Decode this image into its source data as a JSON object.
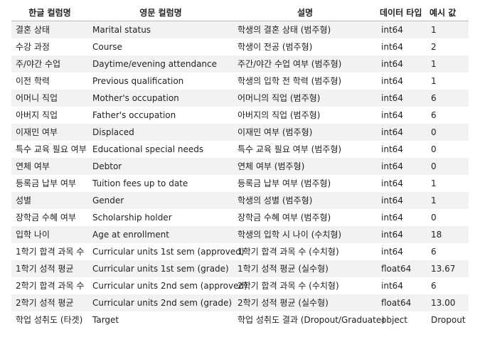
{
  "table": {
    "headers": [
      "한글 컬럼명",
      "영문 컬럼명",
      "설명",
      "데이터 타입",
      "예시 값"
    ],
    "rows": [
      [
        "결혼 상태",
        "Marital status",
        "학생의 결혼 상태 (범주형)",
        "int64",
        "1"
      ],
      [
        "수강 과정",
        "Course",
        "학생이 전공 (범주형)",
        "int64",
        "2"
      ],
      [
        "주/야간 수업",
        "Daytime/evening attendance",
        "주간/야간 수업 여부 (범주형)",
        "int64",
        "1"
      ],
      [
        "이전 학력",
        "Previous qualification",
        "학생의 입학 전 학력 (범주형)",
        "int64",
        "1"
      ],
      [
        "어머니 직업",
        "Mother's occupation",
        "어머니의 직업 (범주형)",
        "int64",
        "6"
      ],
      [
        "아버지 직업",
        "Father's occupation",
        "아버지의 직업 (범주형)",
        "int64",
        "6"
      ],
      [
        "이재민 여부",
        "Displaced",
        "이재민 여부 (범주형)",
        "int64",
        "0"
      ],
      [
        "특수 교육 필요 여부",
        "Educational special needs",
        "특수 교육 필요 여부 (범주형)",
        "int64",
        "0"
      ],
      [
        "연체 여부",
        "Debtor",
        "연체 여부 (범주형)",
        "int64",
        "0"
      ],
      [
        "등록금 납부 여부",
        "Tuition fees up to date",
        "등록금 납부 여부 (범주형)",
        "int64",
        "1"
      ],
      [
        "성별",
        "Gender",
        "학생의 성별 (범주형)",
        "int64",
        "1"
      ],
      [
        "장학금 수혜 여부",
        "Scholarship holder",
        "장학금 수혜 여부 (범주형)",
        "int64",
        "0"
      ],
      [
        "입학 나이",
        "Age at enrollment",
        "학생의 입학 시 나이 (수치형)",
        "int64",
        "18"
      ],
      [
        "1학기 합격 과목 수",
        "Curricular units 1st sem (approved)",
        "1학기 합격 과목 수 (수치형)",
        "int64",
        "6"
      ],
      [
        "1학기 성적 평균",
        "Curricular units 1st sem (grade)",
        "1학기 성적 평균 (실수형)",
        "float64",
        "13.67"
      ],
      [
        "2학기 합격 과목 수",
        "Curricular units 2nd sem (approved)",
        "2학기 합격 과목 수 (수치형)",
        "int64",
        "6"
      ],
      [
        "2학기 성적 평균",
        "Curricular units 2nd sem (grade)",
        "2학기 성적 평균 (실수형)",
        "float64",
        "13.00"
      ],
      [
        "학업 성취도 (타겟)",
        "Target",
        "학업 성취도 결과 (Dropout/Graduate)",
        "object",
        "Dropout"
      ]
    ]
  }
}
